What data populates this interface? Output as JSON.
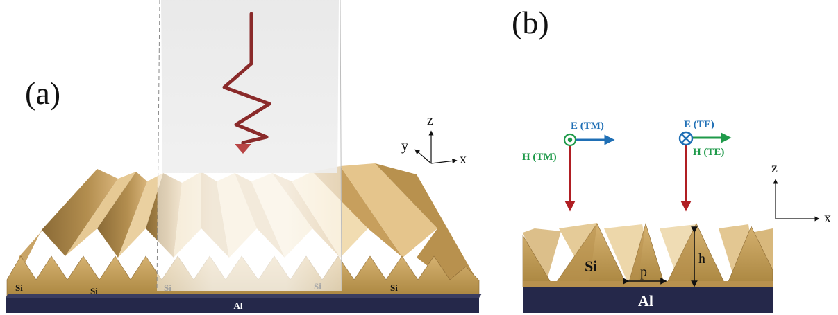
{
  "panel_a": {
    "label": "(a)",
    "materials": {
      "si_labels": [
        "Si",
        "Si",
        "Si",
        "Si",
        "Si"
      ],
      "substrate": "Al"
    },
    "axes": {
      "z": "z",
      "y": "y",
      "x": "x"
    }
  },
  "panel_b": {
    "label": "(b)",
    "tm": {
      "e_label": "E (TM)",
      "h_label": "H (TM)"
    },
    "te": {
      "e_label": "E (TE)",
      "h_label": "H (TE)"
    },
    "materials": {
      "grating": "Si",
      "substrate": "Al"
    },
    "dimensions": {
      "period": "p",
      "height": "h"
    },
    "axes": {
      "z": "z",
      "x": "x"
    }
  },
  "colors": {
    "gold_light": "#e9cc98",
    "gold_dark": "#a8803f",
    "substrate": "#25284a",
    "e_tm": "#1f6fb5",
    "h_tm": "#1f9a4a",
    "e_te": "#1f6fb5",
    "h_te": "#1f9a4a",
    "k_vector": "#b01e23",
    "wave": "#8a2a2a"
  }
}
